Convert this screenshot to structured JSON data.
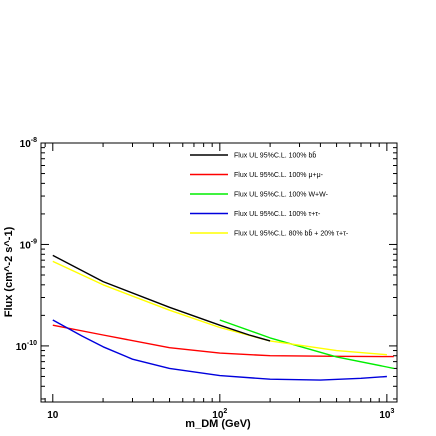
{
  "chart_data": {
    "type": "line",
    "title": "",
    "xlabel": "m_DM (GeV)",
    "ylabel": "Flux (cm^-2 s^-1)",
    "xscale": "log",
    "yscale": "log",
    "xlim": [
      8.5,
      1150
    ],
    "ylim": [
      2.8e-11,
      1e-08
    ],
    "grid": false,
    "legend_position": "top-right",
    "x_tick_labels": [
      {
        "value": 10,
        "base": "10",
        "exp": ""
      },
      {
        "value": 100,
        "base": "10",
        "exp": "2"
      },
      {
        "value": 1000,
        "base": "10",
        "exp": "3"
      }
    ],
    "y_tick_labels": [
      {
        "value": 1e-10,
        "base": "10",
        "exp": "-10"
      },
      {
        "value": 1e-09,
        "base": "10",
        "exp": "-9"
      },
      {
        "value": 1e-08,
        "base": "10",
        "exp": "-8"
      }
    ],
    "series": [
      {
        "name": "Flux UL 95%C.L. 100% bb̄",
        "color": "#000000",
        "x": [
          10,
          20,
          50,
          100,
          150,
          200
        ],
        "y": [
          7.8e-10,
          4.3e-10,
          2.4e-10,
          1.6e-10,
          1.28e-10,
          1.12e-10
        ]
      },
      {
        "name": "Flux UL 95%C.L. 100% μ+μ-",
        "color": "#ff0000",
        "x": [
          10,
          20,
          50,
          100,
          200,
          500,
          1000,
          1100
        ],
        "y": [
          1.6e-10,
          1.28e-10,
          9.6e-11,
          8.5e-11,
          8e-11,
          7.9e-11,
          7.85e-11,
          7.85e-11
        ]
      },
      {
        "name": "Flux UL 95%C.L. 100% W+W-",
        "color": "#00ee00",
        "x": [
          100,
          200,
          500,
          1000,
          1100
        ],
        "y": [
          1.8e-10,
          1.2e-10,
          7.8e-11,
          6.2e-11,
          6e-11
        ]
      },
      {
        "name": "Flux UL 95%C.L. 100% τ+τ-",
        "color": "#0000dd",
        "x": [
          10,
          15,
          20,
          30,
          50,
          100,
          200,
          400,
          700,
          1000
        ],
        "y": [
          1.8e-10,
          1.25e-10,
          9.8e-11,
          7.4e-11,
          6e-11,
          5.1e-11,
          4.7e-11,
          4.6e-11,
          4.8e-11,
          5e-11
        ]
      },
      {
        "name": "Flux UL 95%C.L. 80% bb̄ + 20% τ+τ-",
        "color": "#ffff00",
        "x": [
          10,
          20,
          50,
          100,
          200,
          500,
          1000
        ],
        "y": [
          6.8e-10,
          4e-10,
          2.25e-10,
          1.52e-10,
          1.12e-10,
          9e-11,
          8.2e-11
        ]
      }
    ]
  }
}
